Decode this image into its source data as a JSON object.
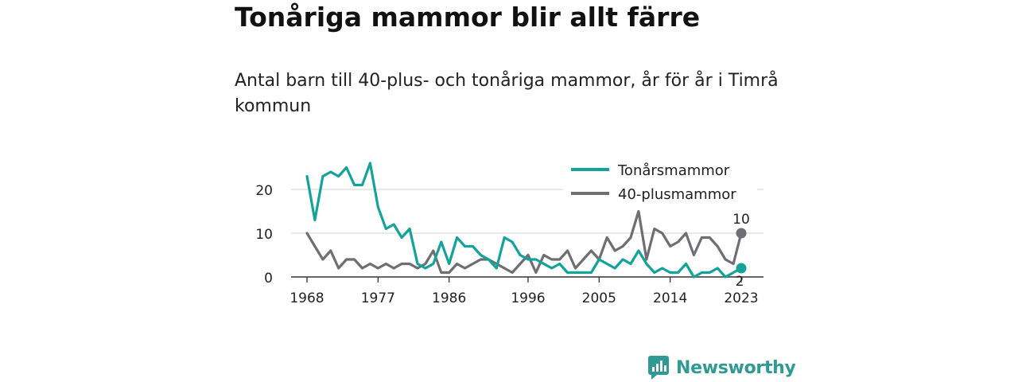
{
  "title": "Tonåriga mammor blir allt färre",
  "subtitle": "Antal barn till 40-plus- och tonåriga mammor, år för år i Timrå kommun",
  "brand": {
    "name": "Newsworthy"
  },
  "colors": {
    "teal": "#13a39a",
    "gray": "#6e6e73",
    "grid": "#dcdcdc",
    "axis": "#333333"
  },
  "chart_data": {
    "type": "line",
    "x": [
      1968,
      1969,
      1970,
      1971,
      1972,
      1973,
      1974,
      1975,
      1976,
      1977,
      1978,
      1979,
      1980,
      1981,
      1982,
      1983,
      1984,
      1985,
      1986,
      1987,
      1988,
      1989,
      1990,
      1991,
      1992,
      1993,
      1994,
      1995,
      1996,
      1997,
      1998,
      1999,
      2000,
      2001,
      2002,
      2003,
      2004,
      2005,
      2006,
      2007,
      2008,
      2009,
      2010,
      2011,
      2012,
      2013,
      2014,
      2015,
      2016,
      2017,
      2018,
      2019,
      2020,
      2021,
      2022,
      2023
    ],
    "series": [
      {
        "name": "Tonårsmammor",
        "color": "#13a39a",
        "values": [
          23,
          13,
          23,
          24,
          23,
          25,
          21,
          21,
          26,
          16,
          11,
          12,
          9,
          11,
          3,
          2,
          3,
          8,
          3,
          9,
          7,
          7,
          5,
          4,
          2,
          9,
          8,
          5,
          4,
          4,
          3,
          2,
          3,
          1,
          1,
          1,
          1,
          4,
          3,
          2,
          4,
          3,
          6,
          3,
          1,
          2,
          1,
          1,
          3,
          0,
          1,
          1,
          2,
          0,
          1,
          2
        ]
      },
      {
        "name": "40-plusmammor",
        "color": "#6e6e73",
        "values": [
          10,
          7,
          4,
          6,
          2,
          4,
          4,
          2,
          3,
          2,
          3,
          2,
          3,
          3,
          2,
          3,
          6,
          1,
          1,
          3,
          2,
          3,
          4,
          4,
          3,
          2,
          1,
          3,
          5,
          1,
          5,
          4,
          4,
          6,
          2,
          4,
          6,
          4,
          9,
          6,
          7,
          9,
          15,
          4,
          11,
          10,
          7,
          8,
          10,
          5,
          9,
          9,
          7,
          4,
          3,
          10
        ]
      }
    ],
    "xticks": [
      "1968",
      "1977",
      "1986",
      "1996",
      "2005",
      "2014",
      "2023"
    ],
    "yticks": [
      "0",
      "10",
      "20"
    ],
    "ylim": [
      0,
      27
    ],
    "xlim": [
      1968,
      2023
    ],
    "end_labels": [
      "10",
      "2"
    ],
    "legend_position": "top-right",
    "grid": true
  }
}
